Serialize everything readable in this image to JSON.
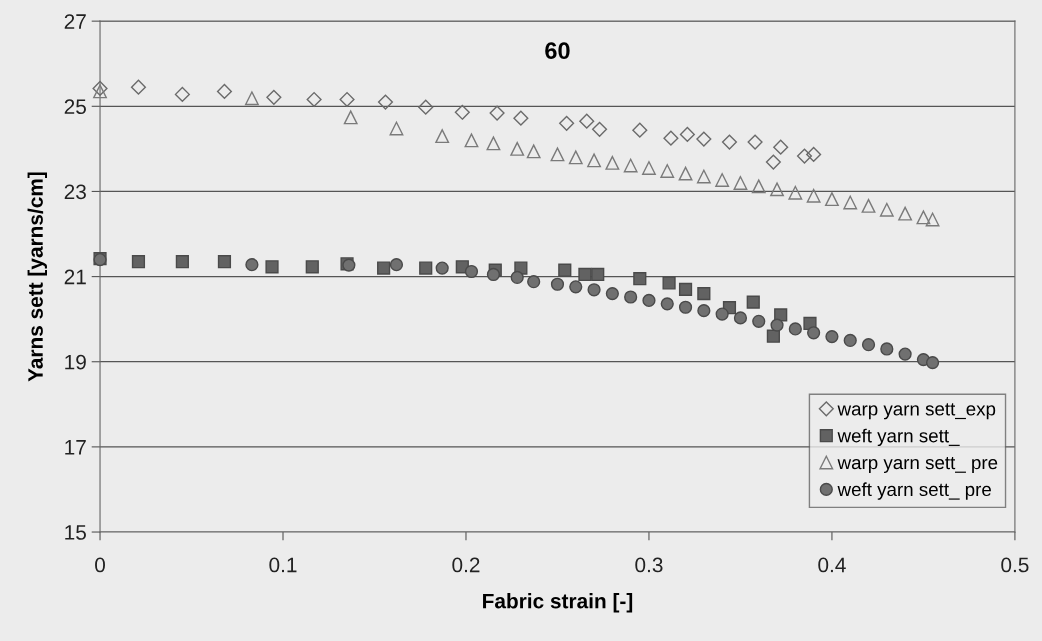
{
  "chart_data": {
    "type": "scatter",
    "title": "60",
    "xlabel": "Fabric strain [-]",
    "ylabel": "Yarns sett [yarns/cm]",
    "xlim": [
      0,
      0.5
    ],
    "xticks": [
      0,
      0.1,
      0.2,
      0.3,
      0.4,
      0.5
    ],
    "ylim": [
      15,
      27
    ],
    "yticks": [
      15,
      17,
      19,
      21,
      23,
      25,
      27
    ],
    "grid": "y",
    "legend": "bottom right",
    "series": [
      {
        "name": "warp yarn sett_exp",
        "marker": "diamond",
        "color": "#6a6a6a",
        "x": [
          0,
          0.021,
          0.045,
          0.068,
          0.095,
          0.117,
          0.135,
          0.156,
          0.178,
          0.198,
          0.217,
          0.23,
          0.255,
          0.266,
          0.273,
          0.295,
          0.312,
          0.321,
          0.33,
          0.344,
          0.358,
          0.368,
          0.372,
          0.385,
          0.39
        ],
        "values": [
          25.42,
          25.45,
          25.28,
          25.35,
          25.21,
          25.16,
          25.16,
          25.1,
          24.98,
          24.86,
          24.84,
          24.72,
          24.6,
          24.65,
          24.46,
          24.44,
          24.25,
          24.34,
          24.23,
          24.16,
          24.16,
          23.69,
          24.04,
          23.83,
          23.87
        ]
      },
      {
        "name": "weft yarn sett_",
        "marker": "square",
        "color": "#626262",
        "x": [
          0,
          0.021,
          0.045,
          0.068,
          0.094,
          0.116,
          0.135,
          0.155,
          0.178,
          0.198,
          0.216,
          0.23,
          0.254,
          0.265,
          0.272,
          0.295,
          0.311,
          0.32,
          0.33,
          0.344,
          0.357,
          0.368,
          0.372,
          0.388
        ],
        "values": [
          21.42,
          21.35,
          21.35,
          21.35,
          21.23,
          21.23,
          21.3,
          21.2,
          21.2,
          21.23,
          21.15,
          21.2,
          21.15,
          21.05,
          21.05,
          20.95,
          20.85,
          20.7,
          20.6,
          20.27,
          20.4,
          19.6,
          20.1,
          19.9
        ]
      },
      {
        "name": "warp yarn sett_ pre",
        "marker": "triangle",
        "color": "#7a7a7a",
        "x": [
          0,
          0.083,
          0.137,
          0.162,
          0.187,
          0.203,
          0.215,
          0.228,
          0.237,
          0.25,
          0.26,
          0.27,
          0.28,
          0.29,
          0.3,
          0.31,
          0.32,
          0.33,
          0.34,
          0.35,
          0.36,
          0.37,
          0.38,
          0.39,
          0.4,
          0.41,
          0.42,
          0.43,
          0.44,
          0.45,
          0.455
        ],
        "values": [
          25.35,
          25.19,
          24.74,
          24.48,
          24.3,
          24.2,
          24.13,
          24.0,
          23.94,
          23.87,
          23.8,
          23.73,
          23.67,
          23.61,
          23.55,
          23.48,
          23.42,
          23.35,
          23.27,
          23.2,
          23.12,
          23.05,
          22.97,
          22.9,
          22.82,
          22.74,
          22.66,
          22.57,
          22.48,
          22.39,
          22.34
        ]
      },
      {
        "name": "weft yarn sett_ pre",
        "marker": "circle",
        "color": "#707070",
        "x": [
          0,
          0.083,
          0.136,
          0.162,
          0.187,
          0.203,
          0.215,
          0.228,
          0.237,
          0.25,
          0.26,
          0.27,
          0.28,
          0.29,
          0.3,
          0.31,
          0.32,
          0.33,
          0.34,
          0.35,
          0.36,
          0.37,
          0.38,
          0.39,
          0.4,
          0.41,
          0.42,
          0.43,
          0.44,
          0.45,
          0.455
        ],
        "values": [
          21.4,
          21.28,
          21.27,
          21.28,
          21.2,
          21.12,
          21.05,
          20.98,
          20.88,
          20.82,
          20.76,
          20.69,
          20.6,
          20.52,
          20.44,
          20.36,
          20.28,
          20.2,
          20.12,
          20.03,
          19.95,
          19.86,
          19.77,
          19.68,
          19.59,
          19.5,
          19.4,
          19.3,
          19.18,
          19.05,
          18.98
        ]
      }
    ]
  }
}
